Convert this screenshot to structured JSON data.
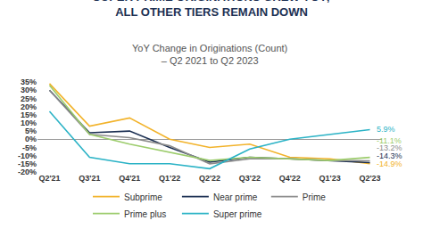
{
  "chart_data": {
    "type": "line",
    "title": "SUPER PRIME ORIGINATIONS GREW YOY; ALL OTHER TIERS REMAIN DOWN",
    "subtitle": "YoY Change in Originations (Count) – Q2 2021 to Q2 2023",
    "categories": [
      "Q2'21",
      "Q3'21",
      "Q4'21",
      "Q1'22",
      "Q2'22",
      "Q3'22",
      "Q4'22",
      "Q1'23",
      "Q2'23"
    ],
    "series": [
      {
        "name": "Subprime",
        "color": "#f2b32b",
        "values": [
          34,
          8,
          13,
          0,
          -5,
          -3,
          -11,
          -12,
          -14.9
        ],
        "value_labels": [
          null,
          null,
          null,
          null,
          null,
          null,
          null,
          null,
          "-14.9%"
        ]
      },
      {
        "name": "Near prime",
        "color": "#1b2f52",
        "values": [
          30,
          4,
          5,
          -5,
          -14,
          -11,
          -12,
          -13,
          -14.3
        ],
        "value_labels": [
          null,
          null,
          null,
          null,
          null,
          null,
          null,
          null,
          "-14.3%"
        ]
      },
      {
        "name": "Prime",
        "color": "#8c8c8c",
        "values": [
          30,
          3,
          1,
          -4,
          -15,
          -12,
          -12,
          -13,
          -13.2
        ],
        "value_labels": [
          null,
          null,
          null,
          null,
          null,
          null,
          null,
          null,
          "-13.2%"
        ]
      },
      {
        "name": "Prime plus",
        "color": "#9ccc6c",
        "values": [
          33,
          3,
          -3,
          -8,
          -13,
          -11,
          -12,
          -13,
          -11.1
        ],
        "value_labels": [
          null,
          null,
          null,
          null,
          null,
          null,
          null,
          null,
          "-11.1%"
        ]
      },
      {
        "name": "Super prime",
        "color": "#2bb3c6",
        "values": [
          17,
          -11,
          -15,
          -15,
          -18,
          -6,
          0,
          3,
          5.9
        ],
        "value_labels": [
          null,
          null,
          null,
          null,
          null,
          null,
          null,
          null,
          "5.9%"
        ]
      }
    ],
    "ylim": [
      -20,
      35
    ],
    "yticks": [
      {
        "value": -20,
        "label": "-20%"
      },
      {
        "value": -15,
        "label": "-15%"
      },
      {
        "value": -10,
        "label": "-10%"
      },
      {
        "value": -5,
        "label": "-5%"
      },
      {
        "value": 0,
        "label": "0%"
      },
      {
        "value": 5,
        "label": "5%"
      },
      {
        "value": 10,
        "label": "10%"
      },
      {
        "value": 15,
        "label": "15%"
      },
      {
        "value": 20,
        "label": "20%"
      },
      {
        "value": 25,
        "label": "25%"
      },
      {
        "value": 30,
        "label": "30%"
      },
      {
        "value": 35,
        "label": "35%"
      }
    ],
    "grid": false,
    "legend": "bottom",
    "data_labels": true
  }
}
